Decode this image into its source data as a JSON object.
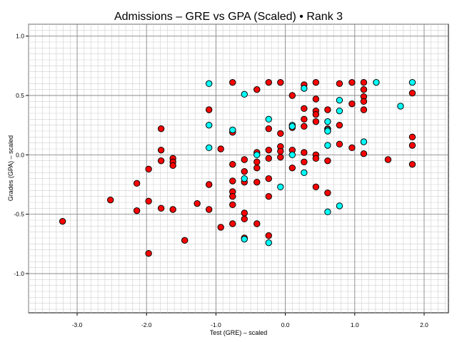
{
  "chart_data": {
    "type": "scatter",
    "title": "Admissions – GRE vs GPA (Scaled) • Rank 3",
    "xlabel": "Test (GRE) – scaled",
    "ylabel": "Grades (GPA) – scaled",
    "xlim": [
      -3.7,
      2.35
    ],
    "ylim": [
      -1.33,
      1.1
    ],
    "xticks": [
      -3.0,
      -2.0,
      -1.0,
      0.0,
      1.0,
      2.0
    ],
    "xtick_labels": [
      "-3.0",
      "-2.0",
      "-1.0",
      "0.0",
      "1.0",
      "2.0"
    ],
    "yticks": [
      -1.0,
      -0.5,
      0.0,
      0.5,
      1.0
    ],
    "ytick_labels": [
      "-1.0",
      "-0.5",
      "0.0",
      "0.5",
      "1.0"
    ],
    "grid": true,
    "minor_grid": true,
    "series": [
      {
        "color": "#ff0000",
        "points": [
          [
            -3.21,
            -0.56
          ],
          [
            -2.52,
            -0.38
          ],
          [
            -2.14,
            -0.24
          ],
          [
            -2.14,
            -0.47
          ],
          [
            -1.97,
            -0.12
          ],
          [
            -1.97,
            -0.39
          ],
          [
            -1.97,
            -0.83
          ],
          [
            -1.79,
            0.22
          ],
          [
            -1.79,
            0.04
          ],
          [
            -1.79,
            -0.05
          ],
          [
            -1.79,
            -0.45
          ],
          [
            -1.62,
            -0.03
          ],
          [
            -1.62,
            -0.06
          ],
          [
            -1.62,
            -0.09
          ],
          [
            -1.62,
            -0.46
          ],
          [
            -1.45,
            -0.72
          ],
          [
            -1.27,
            -0.41
          ],
          [
            -1.1,
            0.38
          ],
          [
            -1.1,
            -0.25
          ],
          [
            -1.1,
            -0.46
          ],
          [
            -0.93,
            0.05
          ],
          [
            -0.93,
            -0.61
          ],
          [
            -0.76,
            0.61
          ],
          [
            -0.76,
            0.19
          ],
          [
            -0.76,
            -0.08
          ],
          [
            -0.76,
            -0.22
          ],
          [
            -0.76,
            -0.31
          ],
          [
            -0.76,
            -0.35
          ],
          [
            -0.76,
            -0.42
          ],
          [
            -0.76,
            -0.58
          ],
          [
            -0.59,
            -0.04
          ],
          [
            -0.59,
            -0.14
          ],
          [
            -0.59,
            -0.23
          ],
          [
            -0.59,
            -0.49
          ],
          [
            -0.59,
            -0.54
          ],
          [
            -0.59,
            -0.7
          ],
          [
            -0.41,
            0.55
          ],
          [
            -0.41,
            0.02
          ],
          [
            -0.41,
            -0.06
          ],
          [
            -0.41,
            -0.11
          ],
          [
            -0.41,
            -0.23
          ],
          [
            -0.41,
            -0.58
          ],
          [
            -0.24,
            0.61
          ],
          [
            -0.24,
            0.22
          ],
          [
            -0.24,
            0.04
          ],
          [
            -0.24,
            -0.03
          ],
          [
            -0.24,
            -0.2
          ],
          [
            -0.24,
            -0.35
          ],
          [
            -0.24,
            -0.68
          ],
          [
            -0.07,
            0.61
          ],
          [
            -0.07,
            0.18
          ],
          [
            -0.07,
            0.07
          ],
          [
            -0.07,
            0.03
          ],
          [
            -0.07,
            -0.02
          ],
          [
            0.1,
            0.5
          ],
          [
            0.1,
            0.23
          ],
          [
            0.1,
            0.04
          ],
          [
            0.1,
            -0.11
          ],
          [
            0.27,
            0.59
          ],
          [
            0.27,
            0.39
          ],
          [
            0.27,
            0.3
          ],
          [
            0.27,
            0.24
          ],
          [
            0.27,
            0.02
          ],
          [
            0.27,
            -0.06
          ],
          [
            0.44,
            0.61
          ],
          [
            0.44,
            0.47
          ],
          [
            0.44,
            0.37
          ],
          [
            0.44,
            0.34
          ],
          [
            0.44,
            0.28
          ],
          [
            0.44,
            0.0
          ],
          [
            0.44,
            -0.03
          ],
          [
            0.44,
            -0.27
          ],
          [
            0.61,
            0.38
          ],
          [
            0.61,
            0.22
          ],
          [
            0.61,
            -0.05
          ],
          [
            0.61,
            -0.32
          ],
          [
            0.78,
            0.6
          ],
          [
            0.78,
            0.25
          ],
          [
            0.78,
            0.09
          ],
          [
            0.96,
            0.61
          ],
          [
            0.96,
            0.43
          ],
          [
            0.96,
            0.06
          ],
          [
            1.13,
            0.61
          ],
          [
            1.13,
            0.55
          ],
          [
            1.13,
            0.49
          ],
          [
            1.13,
            0.45
          ],
          [
            1.13,
            0.38
          ],
          [
            1.13,
            0.01
          ],
          [
            1.48,
            -0.04
          ],
          [
            1.83,
            0.52
          ],
          [
            1.83,
            0.15
          ],
          [
            1.83,
            0.08
          ],
          [
            1.83,
            -0.08
          ]
        ]
      },
      {
        "color": "#00ffff",
        "points": [
          [
            -1.1,
            0.6
          ],
          [
            -1.1,
            0.25
          ],
          [
            -1.1,
            0.06
          ],
          [
            -0.76,
            0.21
          ],
          [
            -0.59,
            0.51
          ],
          [
            -0.59,
            -0.2
          ],
          [
            -0.59,
            -0.71
          ],
          [
            -0.41,
            0.0
          ],
          [
            -0.24,
            0.3
          ],
          [
            -0.24,
            -0.74
          ],
          [
            -0.07,
            -0.27
          ],
          [
            0.1,
            0.25
          ],
          [
            0.1,
            0.24
          ],
          [
            0.1,
            0.0
          ],
          [
            0.27,
            0.56
          ],
          [
            0.27,
            -0.15
          ],
          [
            0.61,
            0.28
          ],
          [
            0.61,
            0.21
          ],
          [
            0.61,
            0.2
          ],
          [
            0.61,
            0.08
          ],
          [
            0.61,
            -0.48
          ],
          [
            0.78,
            0.46
          ],
          [
            0.78,
            0.37
          ],
          [
            0.78,
            -0.43
          ],
          [
            1.13,
            0.11
          ],
          [
            1.31,
            0.61
          ],
          [
            1.66,
            0.41
          ],
          [
            1.83,
            0.61
          ]
        ]
      }
    ]
  }
}
